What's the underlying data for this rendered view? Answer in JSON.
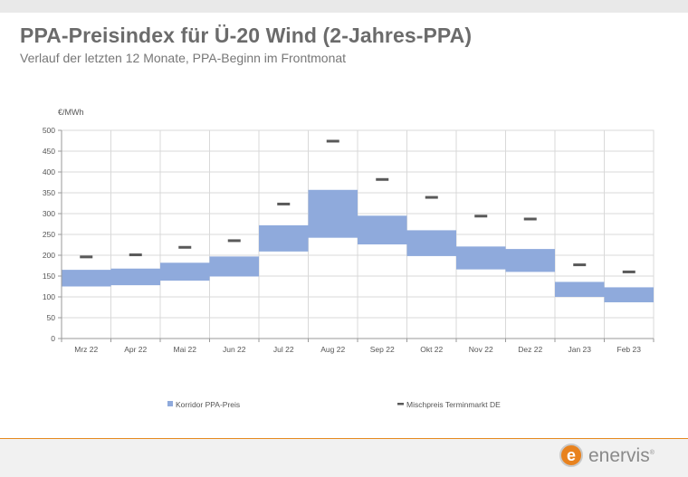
{
  "header": {
    "title": "PPA-Preisindex für Ü-20 Wind (2-Jahres-PPA)",
    "subtitle": "Verlauf der letzten 12 Monate, PPA-Beginn im Frontmonat"
  },
  "logo": {
    "text": "enervis",
    "mark": "e",
    "registered": "®"
  },
  "colors": {
    "corridor": "#8faadc",
    "mix_marker": "#595959",
    "accent": "#e58a1f"
  },
  "chart_data": {
    "type": "bar",
    "ylabel": "€/MWh",
    "ylim": [
      0,
      500
    ],
    "yticks": [
      0,
      50,
      100,
      150,
      200,
      250,
      300,
      350,
      400,
      450,
      500
    ],
    "grid": true,
    "legend_position": "bottom",
    "categories": [
      "Mrz 22",
      "Apr 22",
      "Mai 22",
      "Jun 22",
      "Jul 22",
      "Aug 22",
      "Sep 22",
      "Okt 22",
      "Nov 22",
      "Dez 22",
      "Jan 23",
      "Feb 23"
    ],
    "series": [
      {
        "name": "Korridor PPA-Preis",
        "kind": "range",
        "low": [
          125,
          128,
          139,
          149,
          209,
          242,
          226,
          198,
          166,
          160,
          100,
          87
        ],
        "high": [
          165,
          168,
          182,
          197,
          272,
          357,
          295,
          260,
          221,
          215,
          136,
          123
        ]
      },
      {
        "name": "Mischpreis Terminmarkt DE",
        "kind": "marker",
        "values": [
          196,
          201,
          219,
          235,
          323,
          474,
          382,
          339,
          294,
          287,
          177,
          160
        ]
      }
    ]
  }
}
